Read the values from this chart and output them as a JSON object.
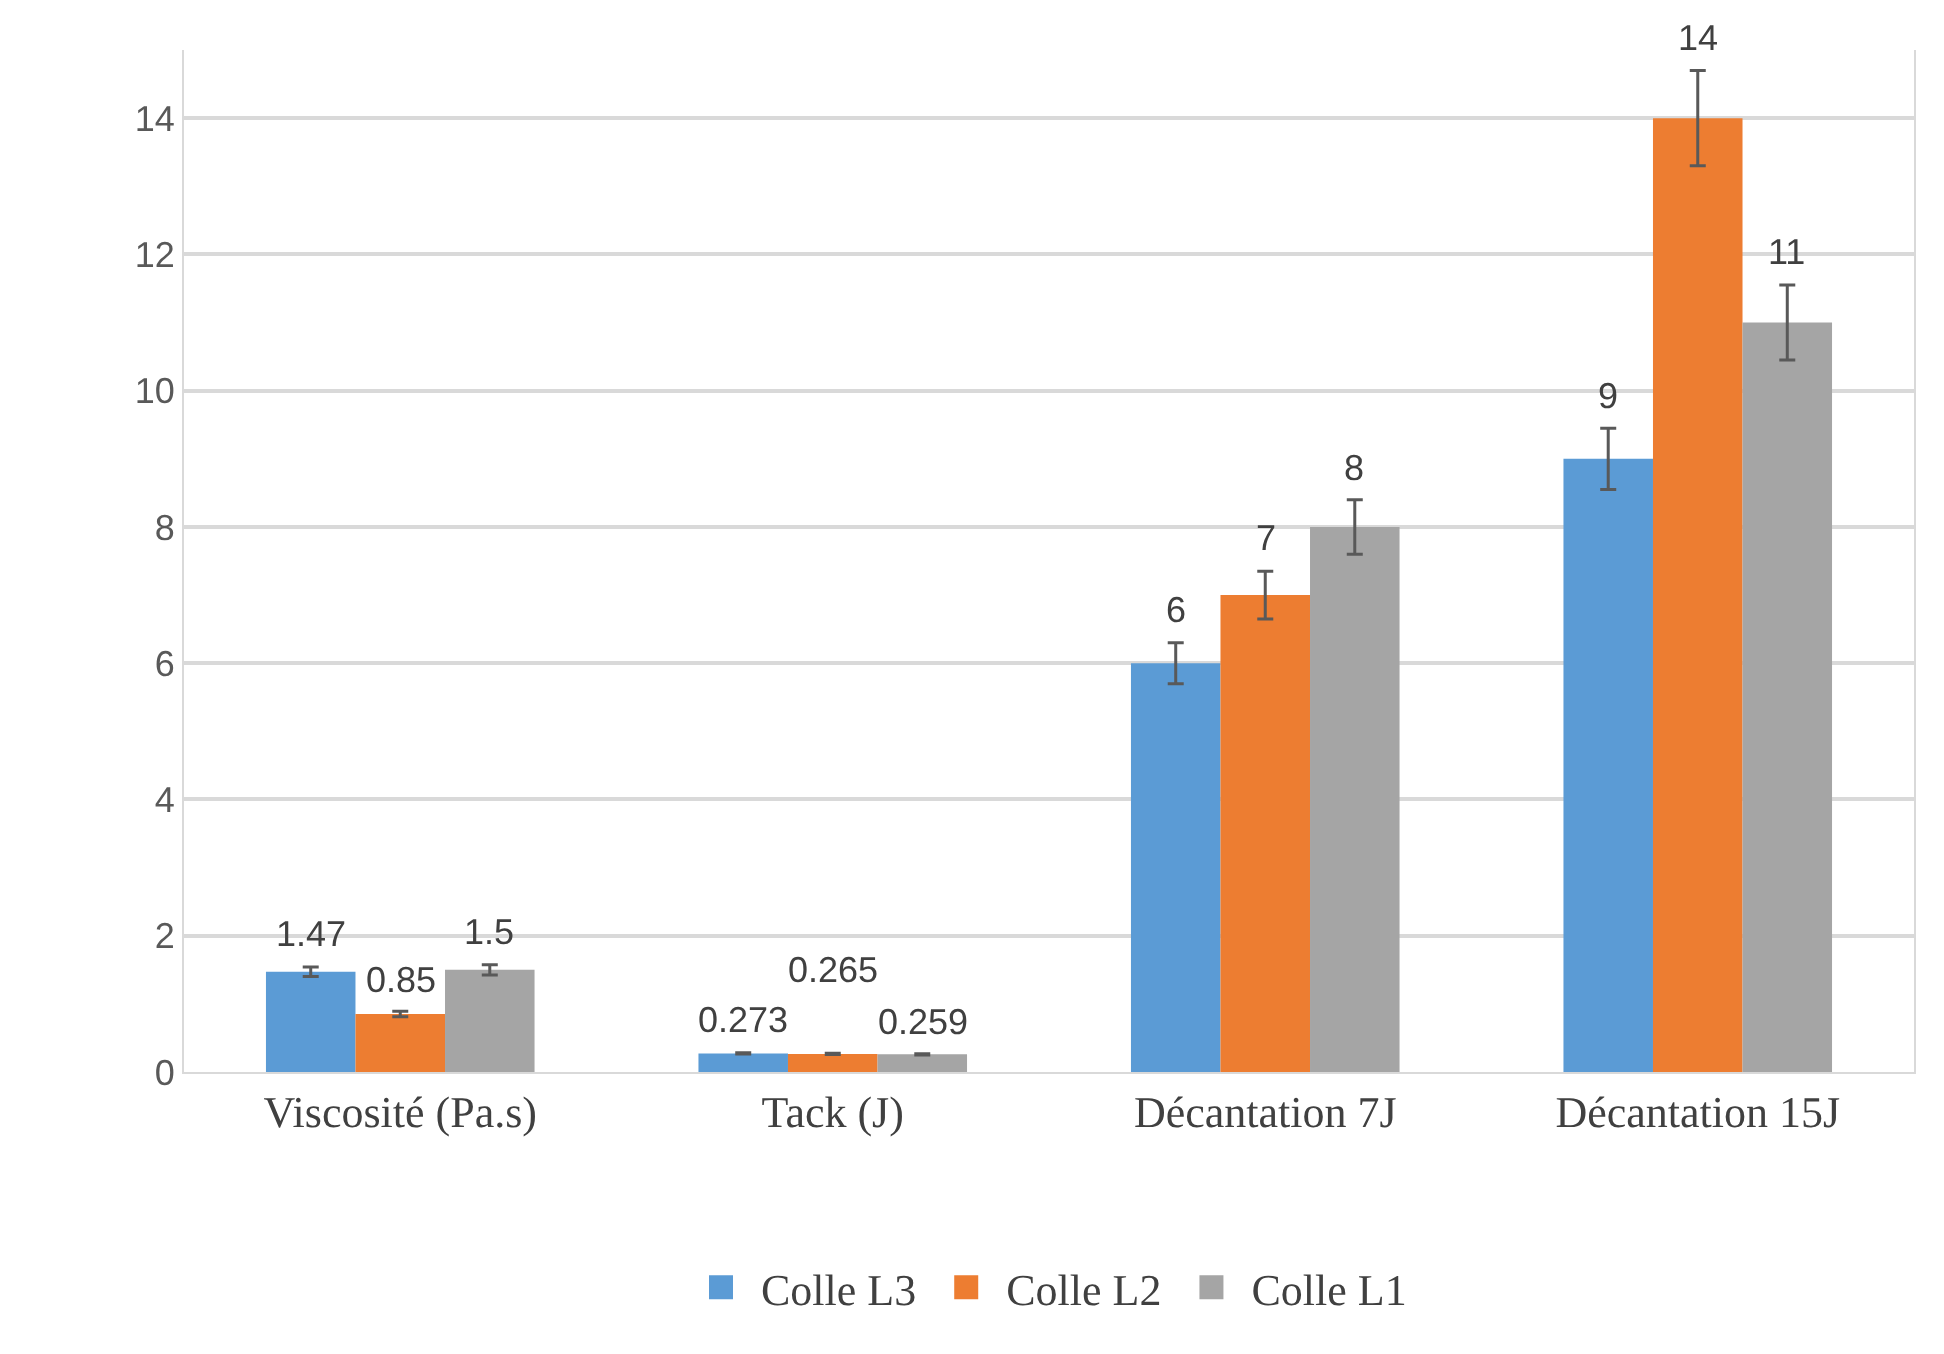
{
  "chart_data": {
    "type": "bar",
    "categories": [
      "Viscosité (Pa.s)",
      "Tack (J)",
      "Décantation 7J",
      "Décantation 15J"
    ],
    "series": [
      {
        "name": "Colle L3",
        "color": "#5b9bd5",
        "values": [
          1.47,
          0.273,
          6,
          9
        ],
        "errors": [
          0.07,
          0.01,
          0.3,
          0.45
        ]
      },
      {
        "name": "Colle L2",
        "color": "#ed7d31",
        "values": [
          0.85,
          0.265,
          7,
          14
        ],
        "errors": [
          0.04,
          0.01,
          0.35,
          0.7
        ]
      },
      {
        "name": "Colle L1",
        "color": "#a5a5a5",
        "values": [
          1.5,
          0.259,
          8,
          11
        ],
        "errors": [
          0.075,
          0.01,
          0.4,
          0.55
        ]
      }
    ],
    "ylim": [
      0,
      15
    ],
    "yticks": [
      0,
      2,
      4,
      6,
      8,
      10,
      12,
      14
    ],
    "grid": "y",
    "legend": "bottom",
    "data_labels": true
  }
}
